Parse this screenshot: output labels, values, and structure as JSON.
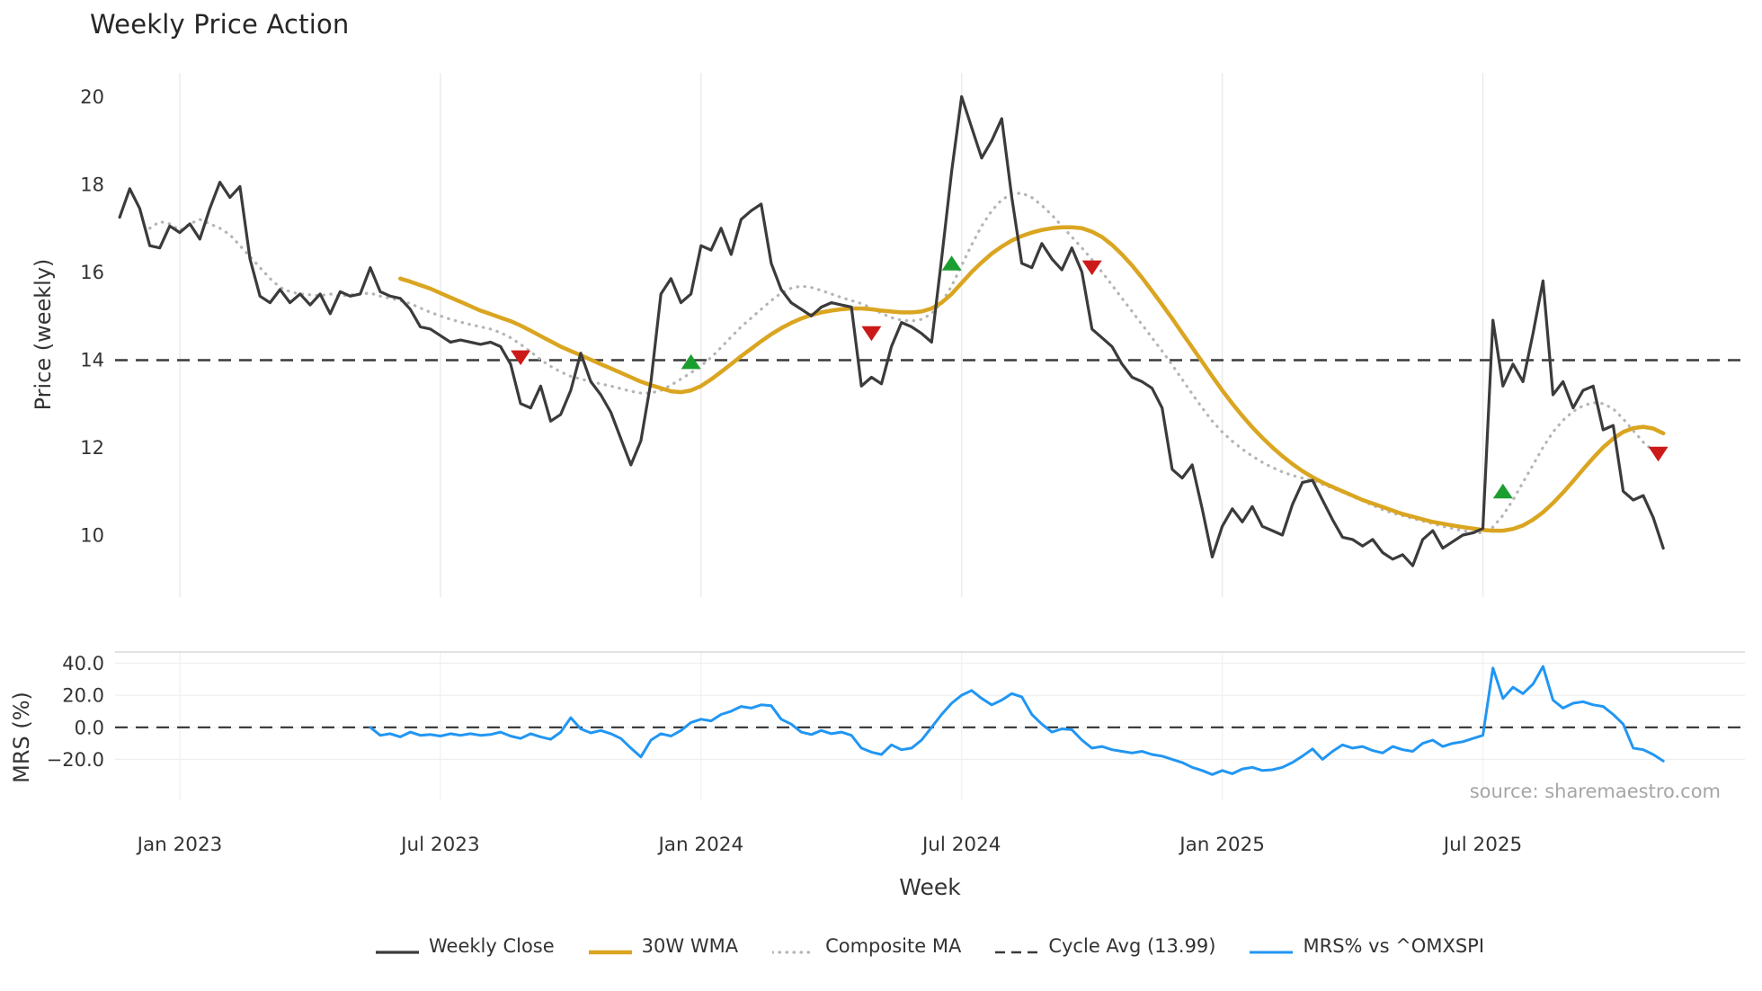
{
  "source": "source: sharemaestro.com",
  "legend": [
    {
      "label": "Weekly Close",
      "color": "#3b3b3b",
      "style": "solid",
      "width": 3.2
    },
    {
      "label": "30W WMA",
      "color": "#daa520",
      "style": "solid",
      "width": 4.5
    },
    {
      "label": "Composite MA",
      "color": "#b5b5b5",
      "style": "dotted",
      "width": 3.2
    },
    {
      "label": "Cycle Avg (13.99)",
      "color": "#3a3a3a",
      "style": "dashed",
      "width": 2.5
    },
    {
      "label": "MRS% vs ^OMXSPI",
      "color": "#2196f3",
      "style": "solid",
      "width": 3.0
    }
  ],
  "chart_data": {
    "type": "line",
    "title": "Weekly Price Action",
    "xlabel": "Week",
    "x_unit": "weekly index (week 6 = Jan 2023, 26 weeks per half year)",
    "x_ticks": [
      {
        "week": 6,
        "label": "Jan 2023"
      },
      {
        "week": 32,
        "label": "Jul 2023"
      },
      {
        "week": 58,
        "label": "Jan 2024"
      },
      {
        "week": 84,
        "label": "Jul 2024"
      },
      {
        "week": 110,
        "label": "Jan 2025"
      },
      {
        "week": 136,
        "label": "Jul 2025"
      }
    ],
    "grid": "vertical gridlines at x ticks; horizontal gridlines in lower panel",
    "legend_position": "bottom center",
    "panels": [
      {
        "name": "price",
        "ylabel": "Price (weekly)",
        "ylim": [
          8.6,
          20.55
        ],
        "yticks": [
          {
            "value": 20,
            "label": "20"
          },
          {
            "value": 18,
            "label": "18"
          },
          {
            "value": 16,
            "label": "16"
          },
          {
            "value": 14,
            "label": "14"
          },
          {
            "value": 12,
            "label": "12"
          },
          {
            "value": 10,
            "label": "10"
          }
        ],
        "series": [
          {
            "name": "Weekly Close",
            "color": "#3b3b3b",
            "style": "solid",
            "width": 3.2,
            "start_week": 0,
            "values": [
              17.25,
              17.9,
              17.45,
              16.6,
              16.55,
              17.05,
              16.9,
              17.1,
              16.75,
              17.45,
              18.05,
              17.7,
              17.95,
              16.3,
              15.45,
              15.3,
              15.6,
              15.3,
              15.5,
              15.25,
              15.5,
              15.05,
              15.55,
              15.45,
              15.5,
              16.1,
              15.55,
              15.45,
              15.4,
              15.15,
              14.75,
              14.7,
              14.55,
              14.4,
              14.45,
              14.4,
              14.35,
              14.4,
              14.3,
              13.9,
              13.0,
              12.9,
              13.4,
              12.6,
              12.75,
              13.3,
              14.15,
              13.5,
              13.2,
              12.8,
              12.2,
              11.6,
              12.15,
              13.5,
              15.5,
              15.85,
              15.3,
              15.5,
              16.6,
              16.5,
              17.0,
              16.4,
              17.2,
              17.4,
              17.55,
              16.2,
              15.6,
              15.3,
              15.15,
              15.0,
              15.2,
              15.3,
              15.25,
              15.2,
              13.4,
              13.6,
              13.45,
              14.3,
              14.85,
              14.75,
              14.6,
              14.4,
              16.3,
              18.3,
              20.0,
              19.3,
              18.6,
              19.0,
              19.5,
              17.7,
              16.2,
              16.1,
              16.65,
              16.3,
              16.05,
              16.55,
              16.0,
              14.7,
              14.5,
              14.3,
              13.9,
              13.6,
              13.5,
              13.35,
              12.9,
              11.5,
              11.3,
              11.6,
              10.6,
              9.5,
              10.2,
              10.6,
              10.3,
              10.65,
              10.2,
              10.1,
              10.0,
              10.7,
              11.2,
              11.25,
              10.8,
              10.35,
              9.95,
              9.9,
              9.75,
              9.9,
              9.6,
              9.45,
              9.55,
              9.3,
              9.9,
              10.1,
              9.7,
              9.85,
              10.0,
              10.05,
              10.15,
              14.9,
              13.4,
              13.9,
              13.5,
              14.6,
              15.8,
              13.2,
              13.5,
              12.9,
              13.3,
              13.4,
              12.4,
              12.5,
              11.0,
              10.8,
              10.9,
              10.4,
              9.7
            ]
          },
          {
            "name": "30W WMA",
            "color": "#daa520",
            "style": "solid",
            "width": 4.5,
            "start_week": 28,
            "values": [
              15.85,
              15.78,
              15.7,
              15.62,
              15.52,
              15.42,
              15.32,
              15.22,
              15.12,
              15.04,
              14.96,
              14.88,
              14.78,
              14.66,
              14.54,
              14.42,
              14.3,
              14.2,
              14.1,
              14.0,
              13.9,
              13.8,
              13.7,
              13.6,
              13.5,
              13.42,
              13.35,
              13.28,
              13.26,
              13.3,
              13.4,
              13.55,
              13.72,
              13.9,
              14.08,
              14.25,
              14.42,
              14.58,
              14.72,
              14.84,
              14.94,
              15.02,
              15.08,
              15.12,
              15.15,
              15.17,
              15.17,
              15.15,
              15.12,
              15.1,
              15.08,
              15.08,
              15.1,
              15.17,
              15.3,
              15.5,
              15.75,
              16.0,
              16.22,
              16.42,
              16.58,
              16.72,
              16.82,
              16.9,
              16.96,
              17.0,
              17.02,
              17.02,
              17.0,
              16.92,
              16.8,
              16.62,
              16.4,
              16.15,
              15.87,
              15.57,
              15.26,
              14.94,
              14.61,
              14.28,
              13.95,
              13.62,
              13.3,
              13.0,
              12.72,
              12.46,
              12.22,
              12.0,
              11.8,
              11.62,
              11.46,
              11.32,
              11.2,
              11.1,
              11.0,
              10.9,
              10.8,
              10.72,
              10.64,
              10.56,
              10.48,
              10.42,
              10.36,
              10.3,
              10.26,
              10.22,
              10.18,
              10.15,
              10.12,
              10.1,
              10.1,
              10.14,
              10.22,
              10.35,
              10.52,
              10.73,
              10.97,
              11.23,
              11.5,
              11.76,
              12.0,
              12.2,
              12.35,
              12.44,
              12.47,
              12.43,
              12.32
            ]
          },
          {
            "name": "Composite MA",
            "color": "#b5b5b5",
            "style": "dotted",
            "width": 3.2,
            "start_week": 3,
            "values": [
              17.0,
              17.15,
              17.1,
              16.95,
              17.1,
              17.2,
              17.1,
              17.0,
              16.85,
              16.6,
              16.35,
              16.1,
              15.85,
              15.65,
              15.55,
              15.5,
              15.48,
              15.46,
              15.5,
              15.45,
              15.48,
              15.5,
              15.52,
              15.45,
              15.4,
              15.35,
              15.28,
              15.18,
              15.08,
              15.0,
              14.92,
              14.86,
              14.8,
              14.75,
              14.7,
              14.62,
              14.5,
              14.35,
              14.18,
              14.0,
              13.85,
              13.72,
              13.62,
              13.56,
              13.5,
              13.45,
              13.4,
              13.34,
              13.28,
              13.24,
              13.24,
              13.3,
              13.42,
              13.56,
              13.7,
              13.86,
              14.05,
              14.28,
              14.52,
              14.75,
              14.95,
              15.15,
              15.35,
              15.52,
              15.63,
              15.68,
              15.65,
              15.58,
              15.5,
              15.42,
              15.35,
              15.28,
              15.18,
              15.06,
              14.96,
              14.9,
              14.88,
              14.92,
              15.05,
              15.3,
              15.68,
              16.15,
              16.62,
              17.05,
              17.4,
              17.65,
              17.78,
              17.8,
              17.7,
              17.52,
              17.3,
              17.05,
              16.8,
              16.55,
              16.28,
              16.0,
              15.7,
              15.4,
              15.1,
              14.8,
              14.5,
              14.2,
              13.88,
              13.55,
              13.22,
              12.9,
              12.6,
              12.35,
              12.14,
              11.96,
              11.8,
              11.66,
              11.54,
              11.44,
              11.36,
              11.3,
              11.24,
              11.16,
              11.07,
              10.98,
              10.88,
              10.78,
              10.68,
              10.58,
              10.5,
              10.44,
              10.38,
              10.32,
              10.26,
              10.2,
              10.15,
              10.1,
              10.06,
              10.05,
              10.18,
              10.45,
              10.8,
              11.2,
              11.6,
              12.0,
              12.35,
              12.62,
              12.82,
              12.95,
              13.02,
              13.0,
              12.88,
              12.65,
              12.38,
              12.12,
              11.92,
              11.8
            ]
          },
          {
            "name": "Cycle Avg (13.99)",
            "color": "#3a3a3a",
            "style": "dashed",
            "width": 2.5,
            "const_value": 13.99
          }
        ],
        "markers": {
          "buy": {
            "color": "#1b9e30",
            "shape": "triangle-up",
            "points": [
              {
                "week": 57,
                "price": 13.95
              },
              {
                "week": 83,
                "price": 16.2
              },
              {
                "week": 138,
                "price": 11.0
              }
            ]
          },
          "sell": {
            "color": "#cc1a1a",
            "shape": "triangle-down",
            "points": [
              {
                "week": 40,
                "price": 14.05
              },
              {
                "week": 75,
                "price": 14.6
              },
              {
                "week": 97,
                "price": 16.1
              },
              {
                "week": 153.5,
                "price": 11.85
              }
            ]
          }
        }
      },
      {
        "name": "mrs",
        "ylabel": "MRS (%)",
        "ylim": [
          -45,
          47
        ],
        "yticks": [
          {
            "value": 40,
            "label": "40.0"
          },
          {
            "value": 20,
            "label": "20.0"
          },
          {
            "value": 0,
            "label": "0.0"
          },
          {
            "value": -20,
            "label": "−20.0"
          }
        ],
        "series": [
          {
            "name": "MRS% vs ^OMXSPI",
            "color": "#2196f3",
            "style": "solid",
            "width": 3.0,
            "start_week": 25,
            "values": [
              0,
              -5,
              -4,
              -6,
              -3,
              -5,
              -4.5,
              -5.5,
              -4,
              -5,
              -4,
              -5,
              -4.5,
              -3,
              -5.5,
              -7,
              -4,
              -6,
              -7.5,
              -3,
              6,
              -1,
              -3.5,
              -2,
              -4,
              -7,
              -13,
              -18.5,
              -8,
              -4,
              -5.5,
              -2,
              3,
              5,
              4,
              8,
              10,
              13,
              12,
              14,
              13.5,
              5,
              2,
              -3,
              -4.5,
              -2,
              -4,
              -3,
              -5,
              -13,
              -15.5,
              -17,
              -11,
              -14,
              -13,
              -8,
              0,
              8,
              15,
              20,
              23,
              18,
              14,
              17,
              21,
              19,
              8,
              2,
              -3,
              -1,
              -1.5,
              -8,
              -13,
              -12,
              -14,
              -15,
              -16,
              -15,
              -17,
              -18,
              -20,
              -22,
              -25,
              -27,
              -29.5,
              -27,
              -29,
              -26,
              -25,
              -27,
              -26.5,
              -25,
              -22,
              -18,
              -13.5,
              -20,
              -15,
              -11,
              -13,
              -12,
              -14.5,
              -16,
              -12,
              -14,
              -15,
              -10,
              -8,
              -12,
              -10,
              -9,
              -7,
              -5,
              37,
              18,
              25,
              21,
              27,
              38,
              17,
              12,
              15,
              16,
              14,
              13,
              8,
              2,
              -13,
              -14,
              -17,
              -21
            ]
          },
          {
            "name": "Zero Line",
            "color": "#333333",
            "style": "dashed",
            "width": 2.2,
            "const_value": 0
          }
        ]
      }
    ]
  }
}
